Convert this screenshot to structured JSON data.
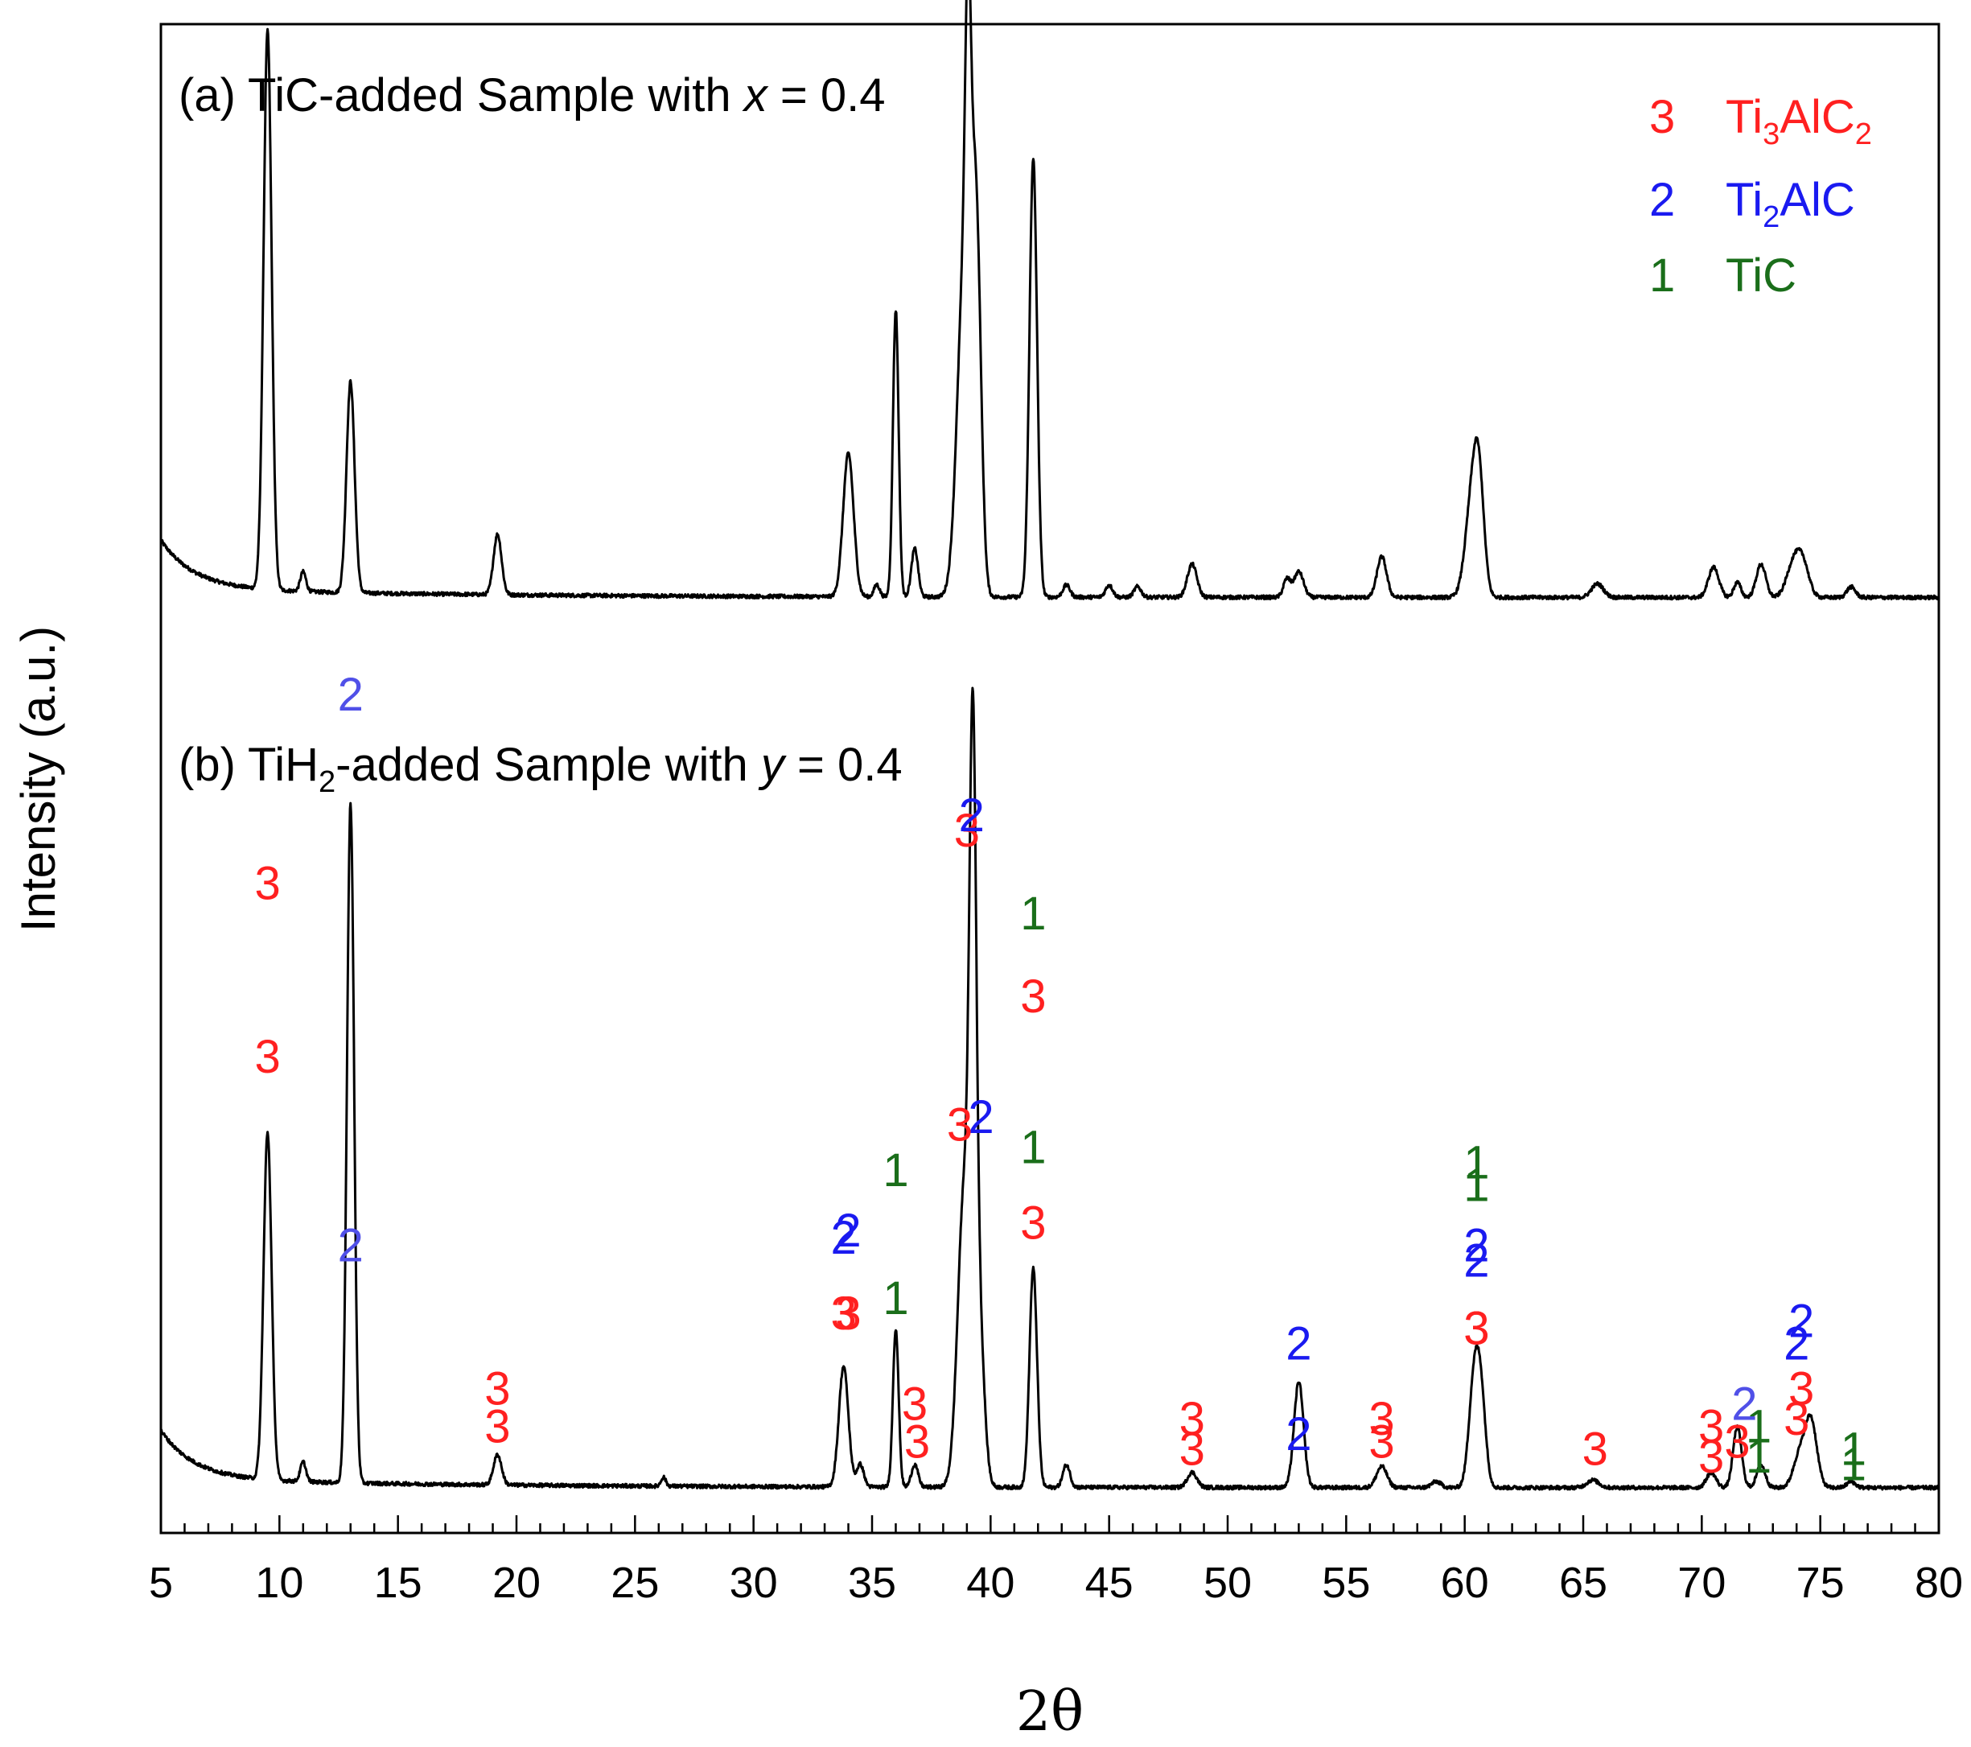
{
  "chart_data": {
    "type": "line",
    "xlabel": "2θ",
    "ylabel": "Intensity (a.u.)",
    "xlim": [
      5,
      80
    ],
    "x_ticks": [
      5,
      10,
      15,
      20,
      25,
      30,
      35,
      40,
      45,
      50,
      55,
      60,
      65,
      70,
      75,
      80
    ],
    "grid": false,
    "ylim": [
      0,
      100
    ],
    "colors": {
      "phase3": "#ff2020",
      "phase2": "#1a1af0",
      "phase2_light": "#5050e8",
      "phase1": "#1a6e1a"
    },
    "legend": {
      "placement": "top-right",
      "entries": [
        {
          "marker": "3",
          "prefix": "Ti",
          "sub1": "3",
          "mid": "AlC",
          "sub2": "2",
          "color": "#ff2020"
        },
        {
          "marker": "2",
          "prefix": "Ti",
          "sub1": "2",
          "mid": "AlC",
          "sub2": "",
          "color": "#1a1af0"
        },
        {
          "marker": "1",
          "prefix": "TiC",
          "sub1": "",
          "mid": "",
          "sub2": "",
          "color": "#1a6e1a"
        }
      ]
    },
    "panels": [
      {
        "title_prefix": "(a) TiC-added Sample with ",
        "title_var": "x",
        "title_h_sub": "",
        "title_suffix": " = 0.4",
        "title_pre_sub": "",
        "baseline": 62,
        "peaks": [
          {
            "x": 9.5,
            "h": 37,
            "w": 0.17
          },
          {
            "x": 11.0,
            "h": 1.3,
            "w": 0.12
          },
          {
            "x": 13.0,
            "h": 14,
            "w": 0.17
          },
          {
            "x": 19.2,
            "h": 4,
            "w": 0.17
          },
          {
            "x": 34.0,
            "h": 9.5,
            "w": 0.22
          },
          {
            "x": 35.2,
            "h": 0.8,
            "w": 0.12
          },
          {
            "x": 36.0,
            "h": 19,
            "w": 0.12
          },
          {
            "x": 36.8,
            "h": 3.2,
            "w": 0.14
          },
          {
            "x": 38.9,
            "h": 22,
            "w": 0.3
          },
          {
            "x": 39.05,
            "h": 19,
            "w": 0.12
          },
          {
            "x": 39.4,
            "h": 22,
            "w": 0.2
          },
          {
            "x": 41.8,
            "h": 29,
            "w": 0.16
          },
          {
            "x": 43.2,
            "h": 0.8,
            "w": 0.15
          },
          {
            "x": 45.0,
            "h": 0.8,
            "w": 0.15
          },
          {
            "x": 46.2,
            "h": 0.7,
            "w": 0.15
          },
          {
            "x": 48.5,
            "h": 2.2,
            "w": 0.2
          },
          {
            "x": 52.5,
            "h": 1.2,
            "w": 0.15
          },
          {
            "x": 53.0,
            "h": 1.7,
            "w": 0.2
          },
          {
            "x": 56.5,
            "h": 2.7,
            "w": 0.2
          },
          {
            "x": 60.3,
            "h": 6,
            "w": 0.28
          },
          {
            "x": 60.6,
            "h": 6.5,
            "w": 0.22
          },
          {
            "x": 65.6,
            "h": 0.9,
            "w": 0.25
          },
          {
            "x": 70.5,
            "h": 2,
            "w": 0.22
          },
          {
            "x": 71.5,
            "h": 1,
            "w": 0.15
          },
          {
            "x": 72.5,
            "h": 2.2,
            "w": 0.2
          },
          {
            "x": 73.9,
            "h": 2.4,
            "w": 0.3
          },
          {
            "x": 74.3,
            "h": 1.7,
            "w": 0.25
          },
          {
            "x": 76.3,
            "h": 0.7,
            "w": 0.18
          }
        ],
        "labels": [
          {
            "x": 9.5,
            "y": 42,
            "text": "3",
            "color": "#ff2020"
          },
          {
            "x": 13.0,
            "y": 18,
            "text": "2",
            "color": "#5050e8"
          },
          {
            "x": 19.2,
            "y": 8.5,
            "text": "3",
            "color": "#ff2020"
          },
          {
            "x": 34.0,
            "y": 19,
            "text": "2",
            "color": "#1a1af0"
          },
          {
            "x": 34.0,
            "y": 13.5,
            "text": "3",
            "color": "#ff2020"
          },
          {
            "x": 36.0,
            "y": 23,
            "text": "1",
            "color": "#1a6e1a"
          },
          {
            "x": 36.8,
            "y": 7.5,
            "text": "3",
            "color": "#ff2020"
          },
          {
            "x": 39.0,
            "y": 45.5,
            "text": "3",
            "color": "#ff2020"
          },
          {
            "x": 39.6,
            "y": 26.5,
            "text": "2",
            "color": "#1a1af0"
          },
          {
            "x": 41.8,
            "y": 40,
            "text": "1",
            "color": "#1a6e1a"
          },
          {
            "x": 41.8,
            "y": 34.5,
            "text": "3",
            "color": "#ff2020"
          },
          {
            "x": 48.5,
            "y": 6.5,
            "text": "3",
            "color": "#ff2020"
          },
          {
            "x": 53.0,
            "y": 5.5,
            "text": "2",
            "color": "#1a1af0"
          },
          {
            "x": 56.5,
            "y": 6.5,
            "text": "3",
            "color": "#ff2020"
          },
          {
            "x": 60.5,
            "y": 23.5,
            "text": "1",
            "color": "#1a6e1a"
          },
          {
            "x": 60.5,
            "y": 18,
            "text": "2",
            "color": "#1a1af0"
          },
          {
            "x": 60.5,
            "y": 12.5,
            "text": "3",
            "color": "#ff2020"
          },
          {
            "x": 65.5,
            "y": 4.5,
            "text": "3",
            "color": "#ff2020"
          },
          {
            "x": 70.4,
            "y": 6,
            "text": "3",
            "color": "#ff2020"
          },
          {
            "x": 71.5,
            "y": 5,
            "text": "3",
            "color": "#ff2020"
          },
          {
            "x": 72.4,
            "y": 6,
            "text": "1",
            "color": "#1a6e1a"
          },
          {
            "x": 74.0,
            "y": 11.5,
            "text": "2",
            "color": "#1a1af0"
          },
          {
            "x": 74.0,
            "y": 6.5,
            "text": "3",
            "color": "#ff2020"
          },
          {
            "x": 76.4,
            "y": 4.5,
            "text": "1",
            "color": "#1a6e1a"
          }
        ]
      },
      {
        "title_prefix": "(b) TiH",
        "title_h_sub": "2",
        "title_pre_sub": "-added Sample with ",
        "title_var": "y",
        "title_suffix": " = 0.4",
        "baseline": 3,
        "peaks": [
          {
            "x": 9.5,
            "h": 23,
            "w": 0.17
          },
          {
            "x": 11.0,
            "h": 1.3,
            "w": 0.12
          },
          {
            "x": 13.0,
            "h": 45,
            "w": 0.15
          },
          {
            "x": 19.2,
            "h": 2,
            "w": 0.17
          },
          {
            "x": 26.2,
            "h": 0.6,
            "w": 0.1
          },
          {
            "x": 33.8,
            "h": 8,
            "w": 0.2
          },
          {
            "x": 34.5,
            "h": 1.5,
            "w": 0.15
          },
          {
            "x": 36.0,
            "h": 10.5,
            "w": 0.12
          },
          {
            "x": 36.8,
            "h": 1.5,
            "w": 0.14
          },
          {
            "x": 38.9,
            "h": 20,
            "w": 0.28
          },
          {
            "x": 39.25,
            "h": 38,
            "w": 0.14
          },
          {
            "x": 39.5,
            "h": 11,
            "w": 0.22
          },
          {
            "x": 41.8,
            "h": 14.5,
            "w": 0.16
          },
          {
            "x": 43.2,
            "h": 1.5,
            "w": 0.15
          },
          {
            "x": 48.5,
            "h": 1,
            "w": 0.2
          },
          {
            "x": 53.0,
            "h": 7,
            "w": 0.2
          },
          {
            "x": 56.5,
            "h": 1.4,
            "w": 0.22
          },
          {
            "x": 58.8,
            "h": 0.4,
            "w": 0.2
          },
          {
            "x": 60.4,
            "h": 7,
            "w": 0.22
          },
          {
            "x": 60.7,
            "h": 5,
            "w": 0.2
          },
          {
            "x": 65.4,
            "h": 0.5,
            "w": 0.25
          },
          {
            "x": 70.4,
            "h": 1,
            "w": 0.2
          },
          {
            "x": 71.5,
            "h": 4,
            "w": 0.18
          },
          {
            "x": 72.5,
            "h": 1.5,
            "w": 0.18
          },
          {
            "x": 74.1,
            "h": 2,
            "w": 0.25
          },
          {
            "x": 74.6,
            "h": 4.5,
            "w": 0.25
          },
          {
            "x": 76.3,
            "h": 0.4,
            "w": 0.18
          }
        ],
        "labels": [
          {
            "x": 9.5,
            "y": 30.5,
            "text": "3",
            "color": "#ff2020"
          },
          {
            "x": 13.0,
            "y": 54.5,
            "text": "2",
            "color": "#5050e8"
          },
          {
            "x": 19.2,
            "y": 6,
            "text": "3",
            "color": "#ff2020"
          },
          {
            "x": 33.8,
            "y": 18.5,
            "text": "2",
            "color": "#1a1af0"
          },
          {
            "x": 33.8,
            "y": 13.5,
            "text": "3",
            "color": "#ff2020"
          },
          {
            "x": 36.0,
            "y": 14.5,
            "text": "1",
            "color": "#1a6e1a"
          },
          {
            "x": 36.9,
            "y": 5,
            "text": "3",
            "color": "#ff2020"
          },
          {
            "x": 39.2,
            "y": 46.5,
            "text": "2",
            "color": "#1a1af0"
          },
          {
            "x": 38.7,
            "y": 26,
            "text": "3",
            "color": "#ff2020"
          },
          {
            "x": 41.8,
            "y": 24.5,
            "text": "1",
            "color": "#1a6e1a"
          },
          {
            "x": 41.8,
            "y": 19.5,
            "text": "3",
            "color": "#ff2020"
          },
          {
            "x": 48.5,
            "y": 4.5,
            "text": "3",
            "color": "#ff2020"
          },
          {
            "x": 53.0,
            "y": 11.5,
            "text": "2",
            "color": "#1a1af0"
          },
          {
            "x": 56.5,
            "y": 5,
            "text": "3",
            "color": "#ff2020"
          },
          {
            "x": 60.5,
            "y": 22,
            "text": "1",
            "color": "#1a6e1a"
          },
          {
            "x": 60.5,
            "y": 17,
            "text": "2",
            "color": "#1a1af0"
          },
          {
            "x": 60.5,
            "y": 12.5,
            "text": "3",
            "color": "#ff2020"
          },
          {
            "x": 70.4,
            "y": 4,
            "text": "3",
            "color": "#ff2020"
          },
          {
            "x": 71.8,
            "y": 7.5,
            "text": "2",
            "color": "#5050e8"
          },
          {
            "x": 72.4,
            "y": 4,
            "text": "1",
            "color": "#1a6e1a"
          },
          {
            "x": 74.2,
            "y": 13,
            "text": "2",
            "color": "#1a1af0"
          },
          {
            "x": 74.2,
            "y": 8.5,
            "text": "3",
            "color": "#ff2020"
          },
          {
            "x": 76.4,
            "y": 3.5,
            "text": "1",
            "color": "#1a6e1a"
          }
        ]
      }
    ]
  }
}
